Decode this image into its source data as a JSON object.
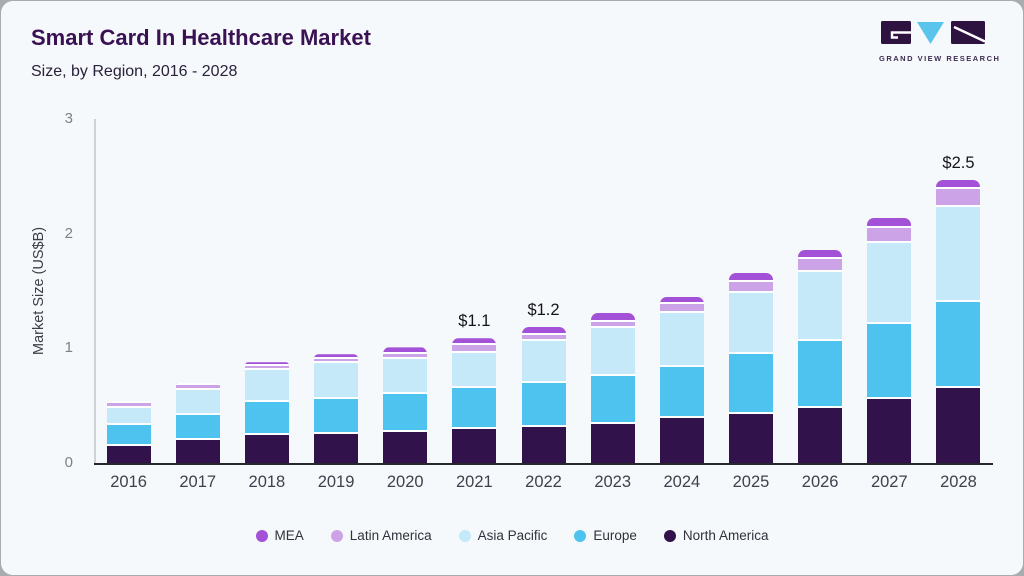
{
  "header": {
    "title": "Smart Card In Healthcare Market",
    "subtitle": "Size, by Region, 2016 - 2028",
    "logo_text": "GRAND VIEW RESEARCH"
  },
  "logo_colors": {
    "dark_purple": "#2e1340",
    "light_blue": "#59c4ec"
  },
  "chart_data": {
    "type": "bar",
    "stacked": true,
    "title": "Smart Card In Healthcare Market",
    "subtitle": "Size, by Region, 2016 - 2028",
    "ylabel": "Market Size (US$B)",
    "ylim": [
      0,
      3
    ],
    "yticks": [
      0,
      1,
      2,
      3
    ],
    "grid": false,
    "legend_position": "bottom",
    "categories": [
      "2016",
      "2017",
      "2018",
      "2019",
      "2020",
      "2021",
      "2022",
      "2023",
      "2024",
      "2025",
      "2026",
      "2027",
      "2028"
    ],
    "series": [
      {
        "name": "North America",
        "color": "#31124b",
        "values": [
          0.15,
          0.2,
          0.24,
          0.25,
          0.27,
          0.3,
          0.31,
          0.34,
          0.39,
          0.43,
          0.48,
          0.56,
          0.65
        ]
      },
      {
        "name": "Europe",
        "color": "#4fc3ef",
        "values": [
          0.18,
          0.22,
          0.29,
          0.31,
          0.33,
          0.35,
          0.39,
          0.42,
          0.45,
          0.52,
          0.58,
          0.65,
          0.75
        ]
      },
      {
        "name": "Asia Pacific",
        "color": "#c5e9f9",
        "values": [
          0.15,
          0.22,
          0.28,
          0.31,
          0.31,
          0.31,
          0.36,
          0.42,
          0.47,
          0.53,
          0.61,
          0.71,
          0.83
        ]
      },
      {
        "name": "Latin America",
        "color": "#cda3e8",
        "values": [
          0.04,
          0.04,
          0.04,
          0.04,
          0.04,
          0.07,
          0.06,
          0.05,
          0.08,
          0.1,
          0.11,
          0.13,
          0.16
        ]
      },
      {
        "name": "MEA",
        "color": "#a351d6",
        "values": [
          0.02,
          0.02,
          0.03,
          0.04,
          0.06,
          0.06,
          0.07,
          0.08,
          0.06,
          0.08,
          0.08,
          0.09,
          0.08
        ]
      }
    ],
    "totals": [
      0.54,
      0.7,
      0.88,
      0.95,
      1.01,
      1.09,
      1.19,
      1.31,
      1.45,
      1.66,
      1.86,
      2.14,
      2.47
    ],
    "annotations": [
      {
        "category": "2021",
        "label": "$1.1"
      },
      {
        "category": "2022",
        "label": "$1.2"
      },
      {
        "category": "2028",
        "label": "$2.5"
      }
    ],
    "legend": [
      {
        "label": "MEA",
        "color": "#a351d6"
      },
      {
        "label": "Latin America",
        "color": "#cda3e8"
      },
      {
        "label": "Asia Pacific",
        "color": "#c5e9f9"
      },
      {
        "label": "Europe",
        "color": "#4fc3ef"
      },
      {
        "label": "North America",
        "color": "#31124b"
      }
    ],
    "axis_colors": {
      "baseline": "#26262e",
      "y_line": "#cdd2d8"
    }
  }
}
